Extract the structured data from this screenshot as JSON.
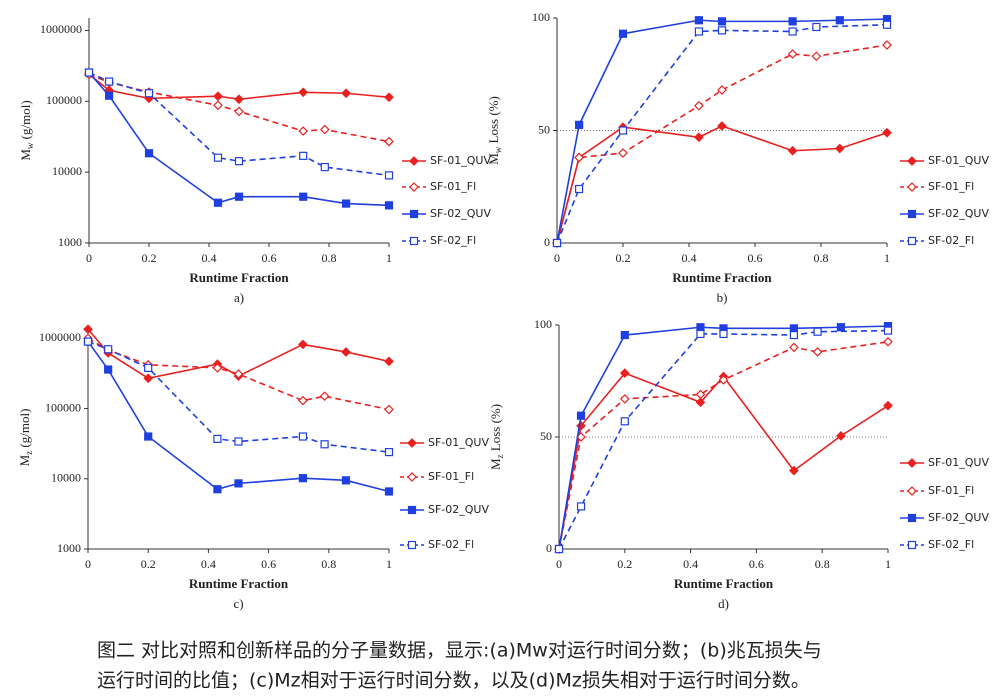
{
  "chart_data": [
    {
      "type": "line",
      "label": "a)",
      "xlabel": "Runtime Fraction",
      "ylabel": [
        "M",
        "w",
        " (g/mol)"
      ],
      "xlim": [
        0,
        1
      ],
      "xticks": [
        0,
        0.2,
        0.4,
        0.6,
        0.8,
        1
      ],
      "log_y": true,
      "ylim": [
        1000,
        1500000
      ],
      "yticks": [
        1000,
        10000,
        100000,
        1000000
      ],
      "series": [
        {
          "name": "SF-01_QUV",
          "color": "#e82020",
          "dashed": false,
          "marker": "diamond",
          "filled": true,
          "x": [
            0,
            0.067,
            0.2,
            0.43,
            0.5,
            0.714,
            0.857,
            1
          ],
          "values": [
            240000,
            143000,
            110000,
            118000,
            107000,
            134000,
            130000,
            114000
          ]
        },
        {
          "name": "SF-01_Fl",
          "color": "#e82020",
          "dashed": true,
          "marker": "diamond",
          "filled": false,
          "x": [
            0,
            0.067,
            0.2,
            0.43,
            0.5,
            0.714,
            0.786,
            1
          ],
          "values": [
            240000,
            185000,
            135000,
            88000,
            72000,
            38000,
            40000,
            27000
          ]
        },
        {
          "name": "SF-02_QUV",
          "color": "#1f3fe0",
          "dashed": false,
          "marker": "square",
          "filled": true,
          "x": [
            0,
            0.067,
            0.2,
            0.43,
            0.5,
            0.714,
            0.857,
            1
          ],
          "values": [
            255000,
            120000,
            18500,
            3700,
            4500,
            4500,
            3600,
            3400
          ]
        },
        {
          "name": "SF-02_Fl",
          "color": "#1f3fe0",
          "dashed": true,
          "marker": "square",
          "filled": false,
          "x": [
            0,
            0.067,
            0.2,
            0.43,
            0.5,
            0.714,
            0.786,
            1
          ],
          "values": [
            255000,
            190000,
            130000,
            16000,
            14300,
            17000,
            11800,
            9000
          ]
        }
      ]
    },
    {
      "type": "line",
      "label": "b)",
      "xlabel": "Runtime Fraction",
      "ylabel": [
        "M",
        "w",
        " Loss (%)"
      ],
      "xlim": [
        0,
        1
      ],
      "xticks": [
        0,
        0.2,
        0.4,
        0.6,
        0.8,
        1
      ],
      "log_y": false,
      "ylim": [
        0,
        100
      ],
      "yticks": [
        0,
        50,
        100
      ],
      "hline": 50,
      "series": [
        {
          "name": "SF-01_QUV",
          "color": "#e82020",
          "dashed": false,
          "marker": "diamond",
          "filled": true,
          "x": [
            0,
            0.067,
            0.2,
            0.43,
            0.5,
            0.714,
            0.857,
            1
          ],
          "values": [
            0,
            38,
            51.5,
            47,
            52,
            41,
            42,
            49
          ]
        },
        {
          "name": "SF-01_Fl",
          "color": "#e82020",
          "dashed": true,
          "marker": "diamond",
          "filled": false,
          "x": [
            0,
            0.067,
            0.2,
            0.43,
            0.5,
            0.714,
            0.786,
            1
          ],
          "values": [
            0,
            38,
            40,
            61,
            68,
            84,
            83,
            88
          ]
        },
        {
          "name": "SF-02_QUV",
          "color": "#1f3fe0",
          "dashed": false,
          "marker": "square",
          "filled": true,
          "x": [
            0,
            0.067,
            0.2,
            0.43,
            0.5,
            0.714,
            0.857,
            1
          ],
          "values": [
            0,
            52.5,
            93,
            99,
            98.5,
            98.5,
            99,
            99.5
          ]
        },
        {
          "name": "SF-02_Fl",
          "color": "#1f3fe0",
          "dashed": true,
          "marker": "square",
          "filled": false,
          "x": [
            0,
            0.067,
            0.2,
            0.43,
            0.5,
            0.714,
            0.786,
            1
          ],
          "values": [
            0,
            24,
            50,
            94,
            94.5,
            94,
            96,
            97
          ]
        }
      ]
    },
    {
      "type": "line",
      "label": "c)",
      "xlabel": "Runtime Fraction",
      "ylabel": [
        "M",
        "z",
        " (g/mol)"
      ],
      "xlim": [
        0,
        1
      ],
      "xticks": [
        0,
        0.2,
        0.4,
        0.6,
        0.8,
        1
      ],
      "log_y": true,
      "ylim": [
        1000,
        1500000
      ],
      "yticks": [
        1000,
        10000,
        100000,
        1000000
      ],
      "series": [
        {
          "name": "SF-01_QUV",
          "color": "#e82020",
          "dashed": false,
          "marker": "diamond",
          "filled": true,
          "x": [
            0,
            0.067,
            0.2,
            0.43,
            0.5,
            0.714,
            0.857,
            1
          ],
          "values": [
            1350000,
            620000,
            270000,
            430000,
            290000,
            820000,
            640000,
            470000
          ]
        },
        {
          "name": "SF-01_Fl",
          "color": "#e82020",
          "dashed": true,
          "marker": "diamond",
          "filled": false,
          "x": [
            0,
            0.067,
            0.2,
            0.43,
            0.5,
            0.714,
            0.786,
            1
          ],
          "values": [
            1000000,
            680000,
            420000,
            380000,
            310000,
            130000,
            150000,
            97000
          ]
        },
        {
          "name": "SF-02_QUV",
          "color": "#1f3fe0",
          "dashed": false,
          "marker": "square",
          "filled": true,
          "x": [
            0,
            0.067,
            0.2,
            0.43,
            0.5,
            0.714,
            0.857,
            1
          ],
          "values": [
            900000,
            360000,
            40000,
            7100,
            8600,
            10200,
            9500,
            6600
          ]
        },
        {
          "name": "SF-02_Fl",
          "color": "#1f3fe0",
          "dashed": true,
          "marker": "square",
          "filled": false,
          "x": [
            0,
            0.067,
            0.2,
            0.43,
            0.5,
            0.714,
            0.786,
            1
          ],
          "values": [
            900000,
            700000,
            380000,
            37000,
            34000,
            40000,
            31000,
            24000
          ]
        }
      ]
    },
    {
      "type": "line",
      "label": "d)",
      "xlabel": "Runtime Fraction",
      "ylabel": [
        "M",
        "z",
        " Loss (%)"
      ],
      "xlim": [
        0,
        1
      ],
      "xticks": [
        0,
        0.2,
        0.4,
        0.6,
        0.8,
        1
      ],
      "log_y": false,
      "ylim": [
        0,
        100
      ],
      "yticks": [
        0,
        50,
        100
      ],
      "hline": 50,
      "series": [
        {
          "name": "SF-01_QUV",
          "color": "#e82020",
          "dashed": false,
          "marker": "diamond",
          "filled": true,
          "x": [
            0,
            0.067,
            0.2,
            0.43,
            0.5,
            0.714,
            0.857,
            1
          ],
          "values": [
            0,
            55,
            78.5,
            65.5,
            77,
            35,
            50.5,
            64
          ]
        },
        {
          "name": "SF-01_Fl",
          "color": "#e82020",
          "dashed": true,
          "marker": "diamond",
          "filled": false,
          "x": [
            0,
            0.067,
            0.2,
            0.43,
            0.5,
            0.714,
            0.786,
            1
          ],
          "values": [
            0,
            50,
            67,
            69,
            75.5,
            90,
            88,
            92.5
          ]
        },
        {
          "name": "SF-02_QUV",
          "color": "#1f3fe0",
          "dashed": false,
          "marker": "square",
          "filled": true,
          "x": [
            0,
            0.067,
            0.2,
            0.43,
            0.5,
            0.714,
            0.857,
            1
          ],
          "values": [
            0,
            59.5,
            95.5,
            99,
            98.5,
            98.5,
            99,
            99.5
          ]
        },
        {
          "name": "SF-02_Fl",
          "color": "#1f3fe0",
          "dashed": true,
          "marker": "square",
          "filled": false,
          "x": [
            0,
            0.067,
            0.2,
            0.43,
            0.5,
            0.714,
            0.786,
            1
          ],
          "values": [
            0,
            19,
            57,
            96,
            96,
            95.5,
            97,
            97.5
          ]
        }
      ]
    }
  ],
  "caption": [
    "图二 对比对照和创新样品的分子量数据，显示:(a)Mw对运行时间分数；(b)兆瓦损失与",
    "运行时间的比值；(c)Mz相对于运行时间分数，以及(d)Mz损失相对于运行时间分数。"
  ]
}
